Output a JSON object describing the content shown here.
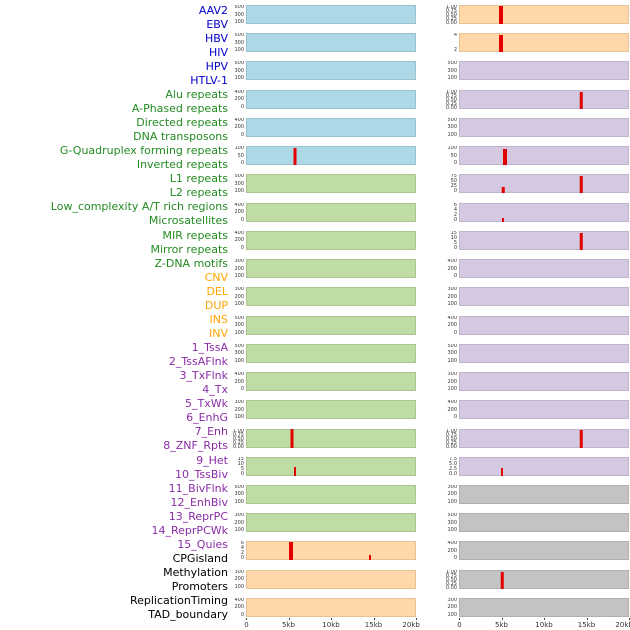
{
  "chart_data": {
    "type": "area",
    "title": "",
    "grid": false,
    "legend_position": "left-labels",
    "x_axis": {
      "tick_labels": [
        "0",
        "5kb",
        "10kb",
        "15kb",
        "20kb"
      ],
      "range_kb": [
        0,
        20
      ]
    },
    "spike_color": "#E50000",
    "groups": {
      "virus": {
        "label_color": "#0000CD",
        "bg": "#ADD8E6"
      },
      "repeat": {
        "label_color": "#228B22",
        "bg": "#BFDCA4"
      },
      "sv": {
        "label_color": "#FFA500",
        "bg": "#FFD7A8"
      },
      "chromatin_state": {
        "label_color": "#8B2CA8",
        "bg": "#D5C9E2"
      },
      "regulatory": {
        "label_color": "#000000",
        "bg": "#C3C3C3"
      }
    },
    "columns": [
      {
        "tracks": [
          {
            "name": "AAV2",
            "group": "virus",
            "yticks": [
              "500",
              "300",
              "100"
            ],
            "spikes": []
          },
          {
            "name": "EBV",
            "group": "virus",
            "yticks": [
              "500",
              "300",
              "100"
            ],
            "spikes": []
          },
          {
            "name": "HBV",
            "group": "virus",
            "yticks": [
              "500",
              "300",
              "100"
            ],
            "spikes": []
          },
          {
            "name": "HIV",
            "group": "virus",
            "yticks": [
              "400",
              "200",
              "0"
            ],
            "spikes": []
          },
          {
            "name": "HPV",
            "group": "virus",
            "yticks": [
              "400",
              "200",
              "0"
            ],
            "spikes": []
          },
          {
            "name": "HTLV-1",
            "group": "virus",
            "yticks": [
              "100",
              "50",
              "0"
            ],
            "spikes": [
              {
                "x_kb": 5.8,
                "h": 0.92,
                "w": 3
              }
            ]
          },
          {
            "name": "Alu repeats",
            "group": "repeat",
            "yticks": [
              "500",
              "300",
              "100"
            ],
            "spikes": []
          },
          {
            "name": "A-Phased repeats",
            "group": "repeat",
            "yticks": [
              "400",
              "200",
              "0"
            ],
            "spikes": []
          },
          {
            "name": "Directed repeats",
            "group": "repeat",
            "yticks": [
              "400",
              "200",
              "0"
            ],
            "spikes": []
          },
          {
            "name": "DNA transposons",
            "group": "repeat",
            "yticks": [
              "300",
              "200",
              "100"
            ],
            "spikes": []
          },
          {
            "name": "G-Quadruplex forming repeats",
            "group": "repeat",
            "yticks": [
              "300",
              "200",
              "100"
            ],
            "spikes": []
          },
          {
            "name": "Inverted repeats",
            "group": "repeat",
            "yticks": [
              "500",
              "300",
              "100"
            ],
            "spikes": []
          },
          {
            "name": "L1 repeats",
            "group": "repeat",
            "yticks": [
              "500",
              "300",
              "100"
            ],
            "spikes": []
          },
          {
            "name": "L2 repeats",
            "group": "repeat",
            "yticks": [
              "400",
              "200",
              "0"
            ],
            "spikes": []
          },
          {
            "name": "Low_complexity A/T rich regions",
            "group": "repeat",
            "yticks": [
              "300",
              "200",
              "100"
            ],
            "spikes": []
          },
          {
            "name": "Microsatellites",
            "group": "repeat",
            "yticks": [
              "1.00",
              "0.75",
              "0.50",
              "0.25",
              "0.00"
            ],
            "spikes": [
              {
                "x_kb": 5.4,
                "h": 0.95,
                "w": 3
              }
            ]
          },
          {
            "name": "MIR repeats",
            "group": "repeat",
            "yticks": [
              "15",
              "10",
              "5",
              "0"
            ],
            "spikes": [
              {
                "x_kb": 5.8,
                "h": 0.45,
                "w": 2
              }
            ]
          },
          {
            "name": "Mirror repeats",
            "group": "repeat",
            "yticks": [
              "500",
              "300",
              "100"
            ],
            "spikes": []
          },
          {
            "name": "Z-DNA motifs",
            "group": "repeat",
            "yticks": [
              "300",
              "200",
              "100"
            ],
            "spikes": []
          },
          {
            "name": "CNV",
            "group": "sv",
            "yticks": [
              "6",
              "4",
              "2",
              "0"
            ],
            "spikes": [
              {
                "x_kb": 5.3,
                "h": 0.95,
                "w": 4
              },
              {
                "x_kb": 14.6,
                "h": 0.3,
                "w": 2
              }
            ]
          },
          {
            "name": "DEL",
            "group": "sv",
            "yticks": [
              "300",
              "200",
              "100"
            ],
            "spikes": []
          },
          {
            "name": "DUP",
            "group": "sv",
            "yticks": [
              "400",
              "200",
              "0"
            ],
            "spikes": []
          }
        ]
      },
      {
        "tracks": [
          {
            "name": "INS",
            "group": "sv",
            "yticks": [
              "1.00",
              "0.75",
              "0.50",
              "0.25",
              "0.00"
            ],
            "spikes": [
              {
                "x_kb": 4.9,
                "h": 0.95,
                "w": 4
              }
            ]
          },
          {
            "name": "INV",
            "group": "sv",
            "yticks": [
              "4",
              "2"
            ],
            "spikes": [
              {
                "x_kb": 4.9,
                "h": 0.92,
                "w": 4
              }
            ]
          },
          {
            "name": "1_TssA",
            "group": "chromatin_state",
            "yticks": [
              "500",
              "300",
              "100"
            ],
            "spikes": []
          },
          {
            "name": "2_TssAFlnk",
            "group": "chromatin_state",
            "yticks": [
              "1.00",
              "0.75",
              "0.50",
              "0.25",
              "0.00"
            ],
            "spikes": [
              {
                "x_kb": 14.4,
                "h": 0.9,
                "w": 2.5
              }
            ]
          },
          {
            "name": "3_TxFlnk",
            "group": "chromatin_state",
            "yticks": [
              "500",
              "300",
              "100"
            ],
            "spikes": []
          },
          {
            "name": "4_Tx",
            "group": "chromatin_state",
            "yticks": [
              "100",
              "50",
              "0"
            ],
            "spikes": [
              {
                "x_kb": 5.4,
                "h": 0.85,
                "w": 4
              }
            ]
          },
          {
            "name": "5_TxWk",
            "group": "chromatin_state",
            "yticks": [
              "75",
              "50",
              "25",
              "0"
            ],
            "spikes": [
              {
                "x_kb": 5.2,
                "h": 0.35,
                "w": 2.5
              },
              {
                "x_kb": 14.4,
                "h": 0.9,
                "w": 2.5
              }
            ]
          },
          {
            "name": "6_EnhG",
            "group": "chromatin_state",
            "yticks": [
              "6",
              "4",
              "2",
              "0"
            ],
            "spikes": [
              {
                "x_kb": 5.2,
                "h": 0.18,
                "w": 2
              }
            ]
          },
          {
            "name": "7_Enh",
            "group": "chromatin_state",
            "yticks": [
              "15",
              "10",
              "5",
              "0"
            ],
            "spikes": [
              {
                "x_kb": 14.4,
                "h": 0.88,
                "w": 2.5
              }
            ]
          },
          {
            "name": "8_ZNF_Rpts",
            "group": "chromatin_state",
            "yticks": [
              "400",
              "200",
              "0"
            ],
            "spikes": []
          },
          {
            "name": "9_Het",
            "group": "chromatin_state",
            "yticks": [
              "300",
              "200",
              "100"
            ],
            "spikes": []
          },
          {
            "name": "10_TssBiv",
            "group": "chromatin_state",
            "yticks": [
              "400",
              "200",
              "0"
            ],
            "spikes": []
          },
          {
            "name": "11_BivFlnk",
            "group": "chromatin_state",
            "yticks": [
              "500",
              "300",
              "100"
            ],
            "spikes": []
          },
          {
            "name": "12_EnhBiv",
            "group": "chromatin_state",
            "yticks": [
              "300",
              "200",
              "100"
            ],
            "spikes": []
          },
          {
            "name": "13_ReprPC",
            "group": "chromatin_state",
            "yticks": [
              "400",
              "200",
              "0"
            ],
            "spikes": []
          },
          {
            "name": "14_ReprPCWk",
            "group": "chromatin_state",
            "yticks": [
              "1.00",
              "0.75",
              "0.50",
              "0.25",
              "0.00"
            ],
            "spikes": [
              {
                "x_kb": 14.4,
                "h": 0.9,
                "w": 2.5
              }
            ]
          },
          {
            "name": "15_Quies",
            "group": "chromatin_state",
            "yticks": [
              "7.5",
              "5.0",
              "2.5",
              "0.0"
            ],
            "spikes": [
              {
                "x_kb": 5.1,
                "h": 0.4,
                "w": 2
              }
            ]
          },
          {
            "name": "CPGisland",
            "group": "regulatory",
            "yticks": [
              "300",
              "200",
              "100"
            ],
            "spikes": []
          },
          {
            "name": "Methylation",
            "group": "regulatory",
            "yticks": [
              "500",
              "300",
              "100"
            ],
            "spikes": []
          },
          {
            "name": "Promoters",
            "group": "regulatory",
            "yticks": [
              "400",
              "200",
              "0"
            ],
            "spikes": []
          },
          {
            "name": "ReplicationTiming",
            "group": "regulatory",
            "yticks": [
              "1.00",
              "0.75",
              "0.50",
              "0.25",
              "0.00"
            ],
            "spikes": [
              {
                "x_kb": 5.1,
                "h": 0.9,
                "w": 2.5
              }
            ]
          },
          {
            "name": "TAD_boundary",
            "group": "regulatory",
            "yticks": [
              "300",
              "200",
              "100"
            ],
            "spikes": []
          }
        ]
      }
    ]
  }
}
